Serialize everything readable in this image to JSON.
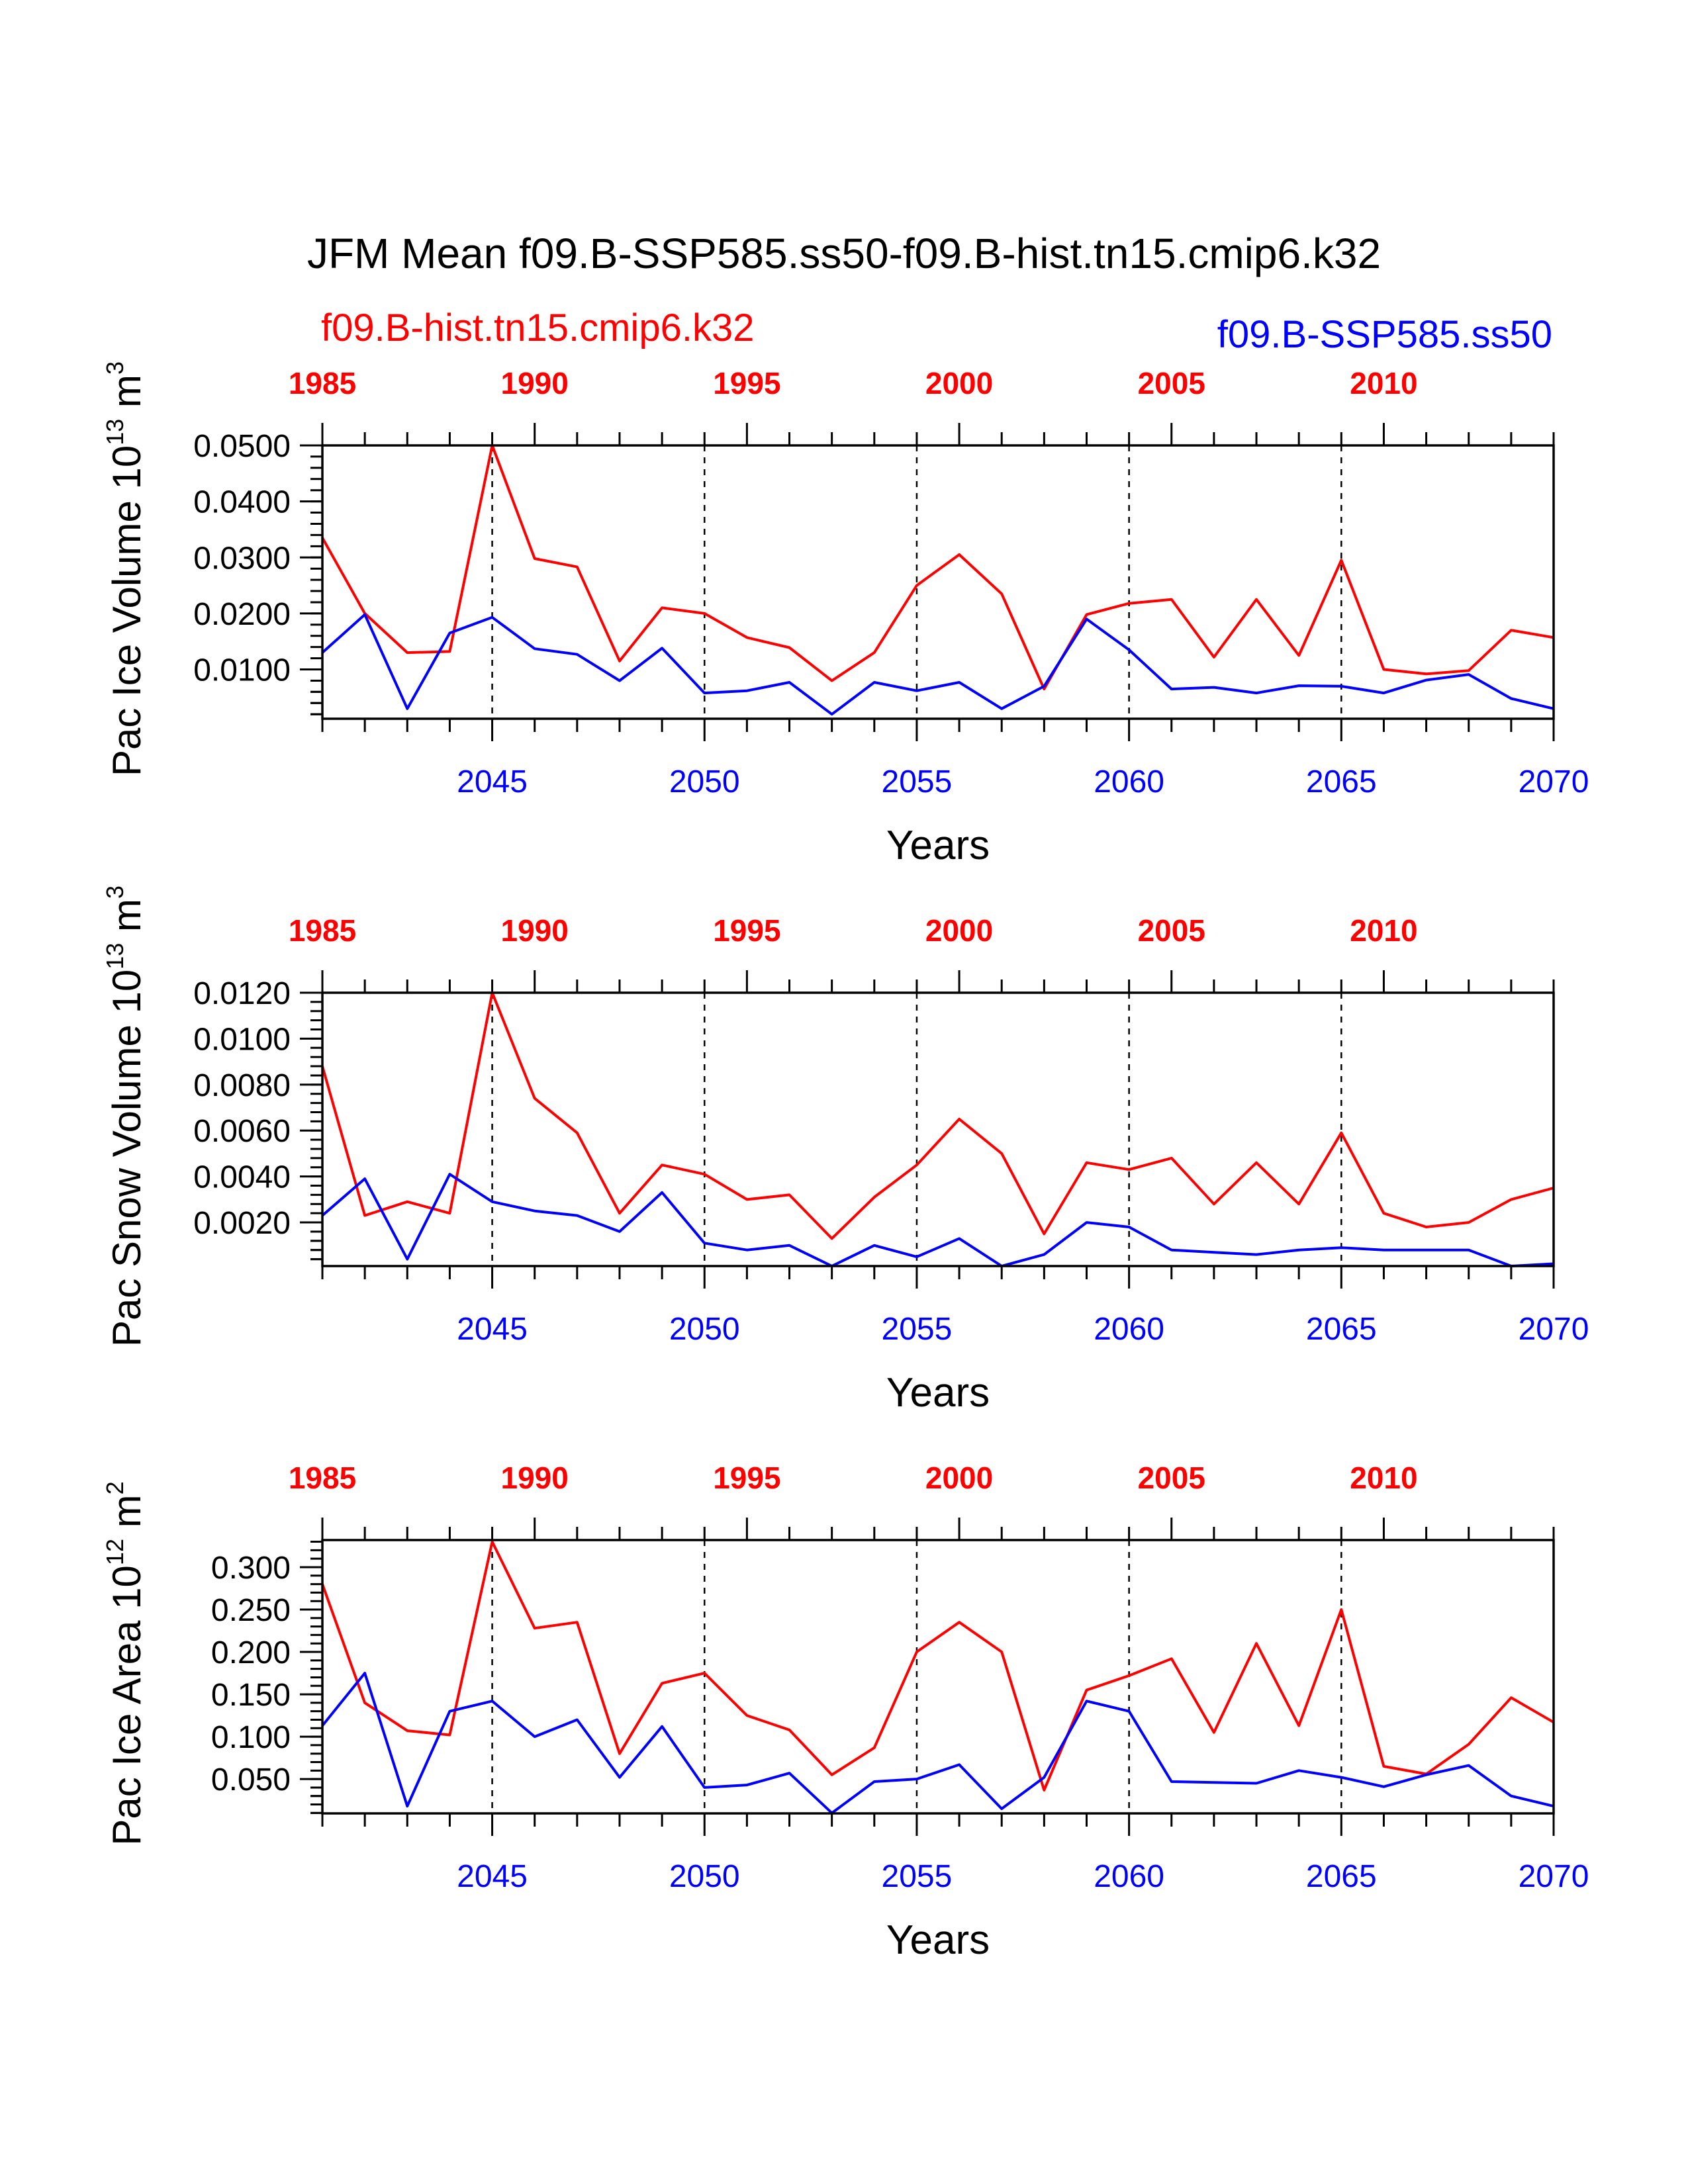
{
  "title": "JFM Mean f09.B-SSP585.ss50-f09.B-hist.tn15.cmip6.k32",
  "legend": {
    "left_label": "f09.B-hist.tn15.cmip6.k32",
    "left_color": "#ff0000",
    "right_label": "f09.B-SSP585.ss50",
    "right_color": "#0000ff"
  },
  "colors": {
    "hist": "#ff0000",
    "ssp": "#0000ff",
    "axis": "#000000"
  },
  "chart_data": [
    {
      "type": "line",
      "ylabel": "Pac Ice Volume 10",
      "ylabel_exp": "13",
      "ylabel_unit": " m",
      "ylabel_unit_exp": "3",
      "xlabel": "Years",
      "ylim": [
        0.0012,
        0.05
      ],
      "yticks": [
        0.01,
        0.02,
        0.03,
        0.04,
        0.05
      ],
      "ytick_labels": [
        "0.0100",
        "0.0200",
        "0.0300",
        "0.0400",
        "0.0500"
      ],
      "xlim": [
        2041,
        2070
      ],
      "bottom_ticks": [
        2045,
        2050,
        2055,
        2060,
        2065,
        2070
      ],
      "bottom_tick_labels": [
        "2045",
        "2050",
        "2055",
        "2060",
        "2065",
        "2070"
      ],
      "top_tick_labels": [
        "1985",
        "1990",
        "1995",
        "2000",
        "2005",
        "2010"
      ],
      "top_tick_positions": [
        2041,
        2046,
        2051,
        2056,
        2061,
        2066
      ],
      "dashed_lines_at": [
        2045,
        2050,
        2055,
        2060,
        2065
      ],
      "x": [
        2041,
        2042,
        2043,
        2044,
        2045,
        2046,
        2047,
        2048,
        2049,
        2050,
        2051,
        2052,
        2053,
        2054,
        2055,
        2056,
        2057,
        2058,
        2059,
        2060,
        2061,
        2062,
        2063,
        2064,
        2065,
        2066,
        2067,
        2068,
        2069,
        2070
      ],
      "series": [
        {
          "key": "hist",
          "values": [
            0.0335,
            0.02,
            0.013,
            0.0132,
            0.05,
            0.0298,
            0.0283,
            0.0115,
            0.021,
            0.02,
            0.0157,
            0.0139,
            0.008,
            0.013,
            0.025,
            0.0305,
            0.0235,
            0.0065,
            0.0198,
            0.0218,
            0.0225,
            0.0122,
            0.0225,
            0.0125,
            0.0295,
            0.01,
            0.0092,
            0.0098,
            0.017,
            0.0157
          ]
        },
        {
          "key": "ssp",
          "values": [
            0.013,
            0.0198,
            0.003,
            0.0165,
            0.0193,
            0.0137,
            0.0127,
            0.008,
            0.0138,
            0.0058,
            0.0062,
            0.0077,
            0.002,
            0.0077,
            0.0062,
            0.0077,
            0.003,
            0.007,
            0.019,
            0.0135,
            0.0065,
            0.0068,
            0.0058,
            0.0071,
            0.007,
            0.0058,
            0.0081,
            0.0091,
            0.0048,
            0.003
          ]
        }
      ]
    },
    {
      "type": "line",
      "ylabel": "Pac Snow Volume 10",
      "ylabel_exp": "13",
      "ylabel_unit": " m",
      "ylabel_unit_exp": "3",
      "xlabel": "Years",
      "ylim": [
        0.0001,
        0.012
      ],
      "yticks": [
        0.002,
        0.004,
        0.006,
        0.008,
        0.01,
        0.012
      ],
      "ytick_labels": [
        "0.0020",
        "0.0040",
        "0.0060",
        "0.0080",
        "0.0100",
        "0.0120"
      ],
      "xlim": [
        2041,
        2070
      ],
      "bottom_ticks": [
        2045,
        2050,
        2055,
        2060,
        2065,
        2070
      ],
      "bottom_tick_labels": [
        "2045",
        "2050",
        "2055",
        "2060",
        "2065",
        "2070"
      ],
      "top_tick_labels": [
        "1985",
        "1990",
        "1995",
        "2000",
        "2005",
        "2010"
      ],
      "top_tick_positions": [
        2041,
        2046,
        2051,
        2056,
        2061,
        2066
      ],
      "dashed_lines_at": [
        2045,
        2050,
        2055,
        2060,
        2065
      ],
      "x": [
        2041,
        2042,
        2043,
        2044,
        2045,
        2046,
        2047,
        2048,
        2049,
        2050,
        2051,
        2052,
        2053,
        2054,
        2055,
        2056,
        2057,
        2058,
        2059,
        2060,
        2061,
        2062,
        2063,
        2064,
        2065,
        2066,
        2067,
        2068,
        2069,
        2070
      ],
      "series": [
        {
          "key": "hist",
          "values": [
            0.0088,
            0.0023,
            0.0029,
            0.0024,
            0.012,
            0.0074,
            0.0059,
            0.0024,
            0.0045,
            0.0041,
            0.003,
            0.0032,
            0.0013,
            0.0031,
            0.0045,
            0.0065,
            0.005,
            0.0015,
            0.0046,
            0.0043,
            0.0048,
            0.0028,
            0.0046,
            0.0028,
            0.0059,
            0.0024,
            0.0018,
            0.002,
            0.003,
            0.0035
          ]
        },
        {
          "key": "ssp",
          "values": [
            0.0023,
            0.0039,
            0.0004,
            0.0041,
            0.0029,
            0.0025,
            0.0023,
            0.0016,
            0.0033,
            0.0011,
            0.0008,
            0.001,
            0.0001,
            0.001,
            0.0005,
            0.0013,
            0.0001,
            0.0006,
            0.002,
            0.0018,
            0.0008,
            0.0007,
            0.0006,
            0.0008,
            0.0009,
            0.0008,
            0.0008,
            0.0008,
            0.0001,
            0.0002
          ]
        }
      ]
    },
    {
      "type": "line",
      "ylabel": "Pac Ice Area 10",
      "ylabel_exp": "12",
      "ylabel_unit": " m",
      "ylabel_unit_exp": "2",
      "xlabel": "Years",
      "ylim": [
        0.0095,
        0.332
      ],
      "yticks": [
        0.05,
        0.1,
        0.15,
        0.2,
        0.25,
        0.3
      ],
      "ytick_labels": [
        "0.050",
        "0.100",
        "0.150",
        "0.200",
        "0.250",
        "0.300"
      ],
      "xlim": [
        2041,
        2070
      ],
      "bottom_ticks": [
        2045,
        2050,
        2055,
        2060,
        2065,
        2070
      ],
      "bottom_tick_labels": [
        "2045",
        "2050",
        "2055",
        "2060",
        "2065",
        "2070"
      ],
      "top_tick_labels": [
        "1985",
        "1990",
        "1995",
        "2000",
        "2005",
        "2010"
      ],
      "top_tick_positions": [
        2041,
        2046,
        2051,
        2056,
        2061,
        2066
      ],
      "dashed_lines_at": [
        2045,
        2050,
        2055,
        2060,
        2065
      ],
      "x": [
        2041,
        2042,
        2043,
        2044,
        2045,
        2046,
        2047,
        2048,
        2049,
        2050,
        2051,
        2052,
        2053,
        2054,
        2055,
        2056,
        2057,
        2058,
        2059,
        2060,
        2061,
        2062,
        2063,
        2064,
        2065,
        2066,
        2067,
        2068,
        2069,
        2070
      ],
      "series": [
        {
          "key": "hist",
          "values": [
            0.28,
            0.14,
            0.107,
            0.102,
            0.33,
            0.228,
            0.235,
            0.08,
            0.163,
            0.175,
            0.125,
            0.108,
            0.055,
            0.087,
            0.2,
            0.235,
            0.2,
            0.037,
            0.155,
            0.172,
            0.192,
            0.105,
            0.21,
            0.113,
            0.25,
            0.065,
            0.056,
            0.091,
            0.146,
            0.117
          ]
        },
        {
          "key": "ssp",
          "values": [
            0.113,
            0.175,
            0.018,
            0.13,
            0.142,
            0.1,
            0.12,
            0.052,
            0.112,
            0.04,
            0.043,
            0.057,
            0.01,
            0.047,
            0.05,
            0.067,
            0.015,
            0.052,
            0.142,
            0.13,
            0.047,
            0.046,
            0.045,
            0.06,
            0.052,
            0.041,
            0.055,
            0.066,
            0.03,
            0.018
          ]
        }
      ]
    }
  ]
}
